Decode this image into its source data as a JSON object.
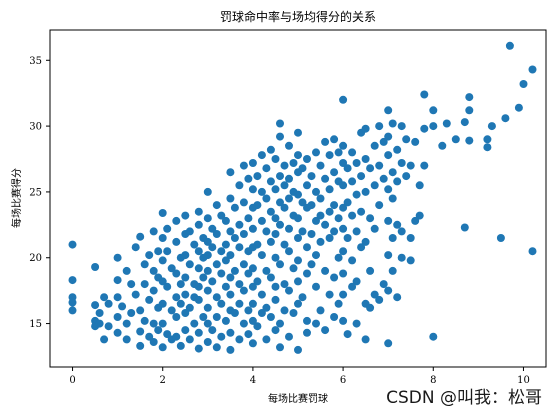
{
  "chart_data": {
    "type": "scatter",
    "title": "罚球命中率与场均得分的关系",
    "xlabel": "每场比赛罚球",
    "ylabel": "每场比赛得分",
    "xlim": [
      -0.5,
      10.5
    ],
    "ylim": [
      11.7,
      37.3
    ],
    "xticks": [
      0,
      2,
      4,
      6,
      8,
      10
    ],
    "yticks": [
      15,
      20,
      25,
      30,
      35
    ],
    "grid": false,
    "point_color": "#1f77b4",
    "points": [
      [
        0,
        21.0
      ],
      [
        0,
        18.3
      ],
      [
        0,
        17.0
      ],
      [
        0,
        16.6
      ],
      [
        0,
        16.0
      ],
      [
        0.5,
        19.3
      ],
      [
        0.5,
        16.4
      ],
      [
        0.5,
        15.2
      ],
      [
        0.5,
        14.8
      ],
      [
        0.6,
        15.8
      ],
      [
        0.6,
        15.0
      ],
      [
        0.7,
        17.0
      ],
      [
        0.7,
        13.8
      ],
      [
        0.8,
        16.5
      ],
      [
        0.8,
        14.8
      ],
      [
        1.0,
        20.0
      ],
      [
        1.0,
        18.3
      ],
      [
        1.0,
        17.0
      ],
      [
        1.0,
        15.5
      ],
      [
        1.0,
        14.3
      ],
      [
        1.1,
        16.3
      ],
      [
        1.2,
        19.0
      ],
      [
        1.2,
        15.0
      ],
      [
        1.2,
        13.8
      ],
      [
        1.3,
        18.0
      ],
      [
        1.3,
        15.8
      ],
      [
        1.4,
        20.8
      ],
      [
        1.4,
        17.2
      ],
      [
        1.5,
        21.6
      ],
      [
        1.5,
        16.0
      ],
      [
        1.5,
        14.4
      ],
      [
        1.5,
        13.3
      ],
      [
        1.6,
        19.5
      ],
      [
        1.6,
        18.0
      ],
      [
        1.6,
        15.2
      ],
      [
        1.7,
        20.2
      ],
      [
        1.7,
        16.8
      ],
      [
        1.7,
        14.0
      ],
      [
        1.8,
        22.0
      ],
      [
        1.8,
        19.0
      ],
      [
        1.8,
        17.5
      ],
      [
        1.8,
        15.0
      ],
      [
        1.8,
        13.6
      ],
      [
        1.9,
        20.5
      ],
      [
        1.9,
        18.5
      ],
      [
        1.9,
        16.2
      ],
      [
        1.9,
        14.5
      ],
      [
        2.0,
        23.4
      ],
      [
        2.0,
        21.5
      ],
      [
        2.0,
        19.8
      ],
      [
        2.0,
        18.2
      ],
      [
        2.0,
        16.5
      ],
      [
        2.0,
        15.0
      ],
      [
        2.0,
        13.2
      ],
      [
        2.1,
        22.2
      ],
      [
        2.1,
        20.5
      ],
      [
        2.1,
        17.8
      ],
      [
        2.1,
        14.2
      ],
      [
        2.2,
        19.2
      ],
      [
        2.2,
        16.0
      ],
      [
        2.2,
        13.8
      ],
      [
        2.3,
        22.8
      ],
      [
        2.3,
        21.2
      ],
      [
        2.3,
        18.8
      ],
      [
        2.3,
        17.0
      ],
      [
        2.3,
        15.5
      ],
      [
        2.3,
        14.0
      ],
      [
        2.4,
        20.0
      ],
      [
        2.4,
        18.0
      ],
      [
        2.4,
        16.5
      ],
      [
        2.4,
        13.3
      ],
      [
        2.5,
        23.2
      ],
      [
        2.5,
        21.8
      ],
      [
        2.5,
        20.2
      ],
      [
        2.5,
        18.5
      ],
      [
        2.5,
        17.2
      ],
      [
        2.5,
        15.8
      ],
      [
        2.5,
        14.5
      ],
      [
        2.6,
        22.0
      ],
      [
        2.6,
        19.5
      ],
      [
        2.6,
        16.2
      ],
      [
        2.6,
        13.8
      ],
      [
        2.7,
        21.0
      ],
      [
        2.7,
        18.0
      ],
      [
        2.7,
        17.0
      ],
      [
        2.7,
        15.0
      ],
      [
        2.8,
        23.5
      ],
      [
        2.8,
        22.5
      ],
      [
        2.8,
        20.5
      ],
      [
        2.8,
        19.2
      ],
      [
        2.8,
        17.8
      ],
      [
        2.8,
        16.8
      ],
      [
        2.8,
        14.3
      ],
      [
        2.8,
        13.1
      ],
      [
        2.9,
        21.5
      ],
      [
        2.9,
        20.0
      ],
      [
        2.9,
        18.5
      ],
      [
        2.9,
        15.5
      ],
      [
        3.0,
        25.0
      ],
      [
        3.0,
        23.0
      ],
      [
        3.0,
        21.2
      ],
      [
        3.0,
        20.2
      ],
      [
        3.0,
        19.0
      ],
      [
        3.0,
        17.5
      ],
      [
        3.0,
        16.2
      ],
      [
        3.0,
        15.0
      ],
      [
        3.0,
        13.6
      ],
      [
        3.1,
        22.2
      ],
      [
        3.1,
        20.8
      ],
      [
        3.1,
        18.2
      ],
      [
        3.1,
        14.5
      ],
      [
        3.2,
        24.0
      ],
      [
        3.2,
        21.8
      ],
      [
        3.2,
        19.5
      ],
      [
        3.2,
        17.0
      ],
      [
        3.2,
        15.5
      ],
      [
        3.2,
        13.2
      ],
      [
        3.3,
        23.2
      ],
      [
        3.3,
        20.5
      ],
      [
        3.3,
        18.8
      ],
      [
        3.3,
        16.5
      ],
      [
        3.3,
        14.0
      ],
      [
        3.4,
        22.8
      ],
      [
        3.4,
        21.0
      ],
      [
        3.4,
        19.8
      ],
      [
        3.4,
        17.8
      ],
      [
        3.4,
        15.2
      ],
      [
        3.5,
        26.5
      ],
      [
        3.5,
        24.5
      ],
      [
        3.5,
        22.0
      ],
      [
        3.5,
        20.2
      ],
      [
        3.5,
        18.5
      ],
      [
        3.5,
        17.2
      ],
      [
        3.5,
        16.0
      ],
      [
        3.5,
        14.3
      ],
      [
        3.5,
        13.0
      ],
      [
        3.6,
        23.8
      ],
      [
        3.6,
        21.5
      ],
      [
        3.6,
        19.0
      ],
      [
        3.6,
        15.8
      ],
      [
        3.7,
        25.5
      ],
      [
        3.7,
        22.5
      ],
      [
        3.7,
        20.8
      ],
      [
        3.7,
        18.0
      ],
      [
        3.7,
        16.5
      ],
      [
        3.7,
        13.8
      ],
      [
        3.8,
        27.0
      ],
      [
        3.8,
        24.2
      ],
      [
        3.8,
        21.8
      ],
      [
        3.8,
        19.5
      ],
      [
        3.8,
        17.5
      ],
      [
        3.8,
        15.0
      ],
      [
        3.9,
        26.0
      ],
      [
        3.9,
        23.0
      ],
      [
        3.9,
        20.5
      ],
      [
        3.9,
        18.8
      ],
      [
        3.9,
        16.0
      ],
      [
        3.9,
        14.2
      ],
      [
        4.0,
        27.2
      ],
      [
        4.0,
        25.2
      ],
      [
        4.0,
        23.8
      ],
      [
        4.0,
        22.2
      ],
      [
        4.0,
        20.8
      ],
      [
        4.0,
        19.2
      ],
      [
        4.0,
        17.8
      ],
      [
        4.0,
        16.5
      ],
      [
        4.0,
        15.2
      ],
      [
        4.0,
        13.5
      ],
      [
        4.1,
        26.2
      ],
      [
        4.1,
        24.0
      ],
      [
        4.1,
        21.0
      ],
      [
        4.1,
        18.2
      ],
      [
        4.1,
        14.8
      ],
      [
        4.2,
        27.8
      ],
      [
        4.2,
        25.0
      ],
      [
        4.2,
        22.8
      ],
      [
        4.2,
        20.2
      ],
      [
        4.2,
        17.2
      ],
      [
        4.2,
        15.8
      ],
      [
        4.3,
        26.8
      ],
      [
        4.3,
        24.5
      ],
      [
        4.3,
        22.0
      ],
      [
        4.3,
        19.0
      ],
      [
        4.3,
        16.2
      ],
      [
        4.3,
        13.8
      ],
      [
        4.4,
        28.2
      ],
      [
        4.4,
        25.8
      ],
      [
        4.4,
        23.5
      ],
      [
        4.4,
        21.2
      ],
      [
        4.4,
        18.5
      ],
      [
        4.4,
        15.5
      ],
      [
        4.5,
        27.5
      ],
      [
        4.5,
        25.2
      ],
      [
        4.5,
        23.0
      ],
      [
        4.5,
        21.8
      ],
      [
        4.5,
        20.0
      ],
      [
        4.5,
        17.8
      ],
      [
        4.5,
        16.8
      ],
      [
        4.5,
        14.5
      ],
      [
        4.6,
        29.2
      ],
      [
        4.6,
        30.2
      ],
      [
        4.6,
        26.2
      ],
      [
        4.6,
        24.2
      ],
      [
        4.6,
        22.5
      ],
      [
        4.6,
        19.5
      ],
      [
        4.6,
        15.0
      ],
      [
        4.6,
        13.2
      ],
      [
        4.7,
        27.0
      ],
      [
        4.7,
        25.5
      ],
      [
        4.7,
        23.8
      ],
      [
        4.7,
        21.0
      ],
      [
        4.7,
        18.0
      ],
      [
        4.7,
        16.0
      ],
      [
        4.8,
        28.5
      ],
      [
        4.8,
        26.0
      ],
      [
        4.8,
        24.5
      ],
      [
        4.8,
        22.2
      ],
      [
        4.8,
        20.5
      ],
      [
        4.8,
        17.5
      ],
      [
        4.8,
        14.0
      ],
      [
        4.9,
        27.2
      ],
      [
        4.9,
        25.0
      ],
      [
        4.9,
        23.2
      ],
      [
        4.9,
        19.2
      ],
      [
        4.9,
        15.8
      ],
      [
        5.0,
        29.5
      ],
      [
        5.0,
        27.8
      ],
      [
        5.0,
        26.5
      ],
      [
        5.0,
        24.8
      ],
      [
        5.0,
        23.0
      ],
      [
        5.0,
        21.5
      ],
      [
        5.0,
        19.8
      ],
      [
        5.0,
        18.2
      ],
      [
        5.0,
        16.5
      ],
      [
        5.0,
        13.0
      ],
      [
        5.1,
        26.8
      ],
      [
        5.1,
        24.2
      ],
      [
        5.1,
        22.0
      ],
      [
        5.1,
        17.0
      ],
      [
        5.2,
        27.5
      ],
      [
        5.2,
        25.5
      ],
      [
        5.2,
        23.8
      ],
      [
        5.2,
        20.8
      ],
      [
        5.2,
        18.8
      ],
      [
        5.2,
        15.2
      ],
      [
        5.2,
        14.3
      ],
      [
        5.3,
        26.2
      ],
      [
        5.3,
        24.0
      ],
      [
        5.3,
        21.8
      ],
      [
        5.3,
        19.5
      ],
      [
        5.4,
        28.0
      ],
      [
        5.4,
        25.0
      ],
      [
        5.4,
        22.8
      ],
      [
        5.4,
        20.2
      ],
      [
        5.4,
        17.8
      ],
      [
        5.4,
        15.0
      ],
      [
        5.5,
        27.0
      ],
      [
        5.5,
        24.5
      ],
      [
        5.5,
        23.2
      ],
      [
        5.5,
        21.2
      ],
      [
        5.5,
        16.0
      ],
      [
        5.6,
        28.8
      ],
      [
        5.6,
        26.0
      ],
      [
        5.6,
        22.5
      ],
      [
        5.6,
        19.0
      ],
      [
        5.6,
        14.5
      ],
      [
        5.7,
        27.8
      ],
      [
        5.7,
        25.2
      ],
      [
        5.7,
        23.5
      ],
      [
        5.7,
        21.5
      ],
      [
        5.7,
        17.2
      ],
      [
        5.8,
        29.0
      ],
      [
        5.8,
        26.5
      ],
      [
        5.8,
        24.0
      ],
      [
        5.8,
        22.0
      ],
      [
        5.8,
        18.5
      ],
      [
        5.8,
        15.5
      ],
      [
        5.9,
        28.0
      ],
      [
        5.9,
        25.8
      ],
      [
        5.9,
        23.0
      ],
      [
        5.9,
        20.0
      ],
      [
        5.9,
        16.5
      ],
      [
        6.0,
        32.0
      ],
      [
        6.0,
        28.5
      ],
      [
        6.0,
        27.2
      ],
      [
        6.0,
        25.5
      ],
      [
        6.0,
        23.8
      ],
      [
        6.0,
        22.2
      ],
      [
        6.0,
        20.5
      ],
      [
        6.0,
        18.8
      ],
      [
        6.0,
        17.2
      ],
      [
        6.0,
        15.2
      ],
      [
        6.1,
        26.8
      ],
      [
        6.1,
        24.2
      ],
      [
        6.1,
        21.5
      ],
      [
        6.1,
        14.2
      ],
      [
        6.2,
        28.0
      ],
      [
        6.2,
        25.8
      ],
      [
        6.2,
        23.2
      ],
      [
        6.2,
        19.8
      ],
      [
        6.2,
        17.8
      ],
      [
        6.3,
        27.2
      ],
      [
        6.3,
        24.8
      ],
      [
        6.3,
        22.0
      ],
      [
        6.3,
        18.2
      ],
      [
        6.3,
        15.0
      ],
      [
        6.4,
        29.5
      ],
      [
        6.4,
        26.2
      ],
      [
        6.4,
        23.5
      ],
      [
        6.4,
        20.8
      ],
      [
        6.5,
        29.8
      ],
      [
        6.5,
        27.5
      ],
      [
        6.5,
        25.0
      ],
      [
        6.5,
        21.2
      ],
      [
        6.5,
        16.5
      ],
      [
        6.5,
        13.8
      ],
      [
        6.6,
        26.8
      ],
      [
        6.6,
        23.0
      ],
      [
        6.6,
        19.0
      ],
      [
        6.6,
        16.2
      ],
      [
        6.7,
        28.5
      ],
      [
        6.7,
        25.5
      ],
      [
        6.7,
        22.2
      ],
      [
        6.7,
        17.2
      ],
      [
        6.8,
        30.0
      ],
      [
        6.8,
        27.0
      ],
      [
        6.8,
        24.0
      ],
      [
        6.8,
        16.8
      ],
      [
        6.9,
        28.8
      ],
      [
        6.9,
        26.0
      ],
      [
        6.9,
        18.0
      ],
      [
        7.0,
        31.2
      ],
      [
        7.0,
        29.2
      ],
      [
        7.0,
        27.8
      ],
      [
        7.0,
        25.2
      ],
      [
        7.0,
        22.8
      ],
      [
        7.0,
        20.2
      ],
      [
        7.0,
        17.5
      ],
      [
        7.0,
        13.5
      ],
      [
        7.1,
        30.2
      ],
      [
        7.1,
        26.5
      ],
      [
        7.1,
        24.5
      ],
      [
        7.1,
        21.5
      ],
      [
        7.1,
        19.0
      ],
      [
        7.2,
        28.2
      ],
      [
        7.2,
        25.8
      ],
      [
        7.2,
        22.5
      ],
      [
        7.2,
        17.0
      ],
      [
        7.3,
        30.0
      ],
      [
        7.3,
        27.2
      ],
      [
        7.3,
        22.0
      ],
      [
        7.3,
        20.0
      ],
      [
        7.4,
        29.0
      ],
      [
        7.4,
        26.2
      ],
      [
        7.5,
        27.0
      ],
      [
        7.5,
        21.5
      ],
      [
        7.5,
        19.8
      ],
      [
        7.6,
        28.8
      ],
      [
        7.6,
        22.8
      ],
      [
        7.7,
        25.5
      ],
      [
        7.7,
        23.2
      ],
      [
        7.8,
        32.4
      ],
      [
        7.8,
        29.8
      ],
      [
        7.8,
        27.0
      ],
      [
        8.0,
        31.2
      ],
      [
        8.0,
        30.0
      ],
      [
        8.0,
        14.0
      ],
      [
        8.2,
        28.5
      ],
      [
        8.3,
        30.2
      ],
      [
        8.5,
        29.0
      ],
      [
        8.7,
        30.3
      ],
      [
        8.7,
        22.3
      ],
      [
        8.8,
        32.2
      ],
      [
        8.8,
        31.2
      ],
      [
        8.8,
        28.9
      ],
      [
        9.2,
        29.0
      ],
      [
        9.2,
        28.4
      ],
      [
        9.3,
        30.0
      ],
      [
        9.5,
        21.5
      ],
      [
        9.6,
        30.6
      ],
      [
        9.7,
        36.1
      ],
      [
        9.9,
        31.4
      ],
      [
        10.0,
        33.2
      ],
      [
        10.2,
        34.3
      ],
      [
        10.2,
        20.5
      ]
    ]
  },
  "watermark": "CSDN @叫我：松哥"
}
